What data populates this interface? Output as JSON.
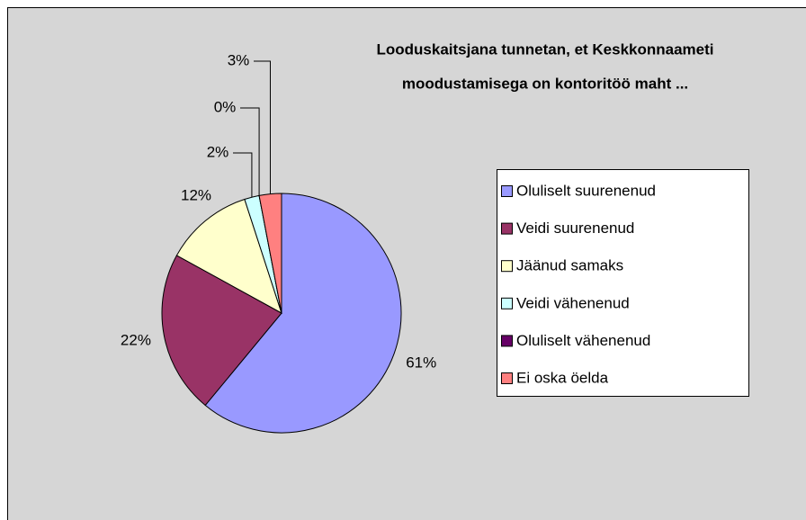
{
  "chart_data": {
    "type": "pie",
    "title": [
      "Looduskaitsjana tunnetan, et Keskkonnaameti",
      "moodustamisega  on kontoritöö maht ..."
    ],
    "categories": [
      "Oluliselt suurenenud",
      "Veidi suurenenud",
      "Jäänud samaks",
      "Veidi vähenenud",
      "Oluliselt vähenenud",
      "Ei oska öelda"
    ],
    "values": [
      61,
      22,
      12,
      2,
      0,
      3
    ],
    "value_labels": [
      "61%",
      "22%",
      "12%",
      "2%",
      "0%",
      "3%"
    ],
    "colors": [
      "#9999ff",
      "#993366",
      "#ffffcc",
      "#ccffff",
      "#660066",
      "#ff8080"
    ],
    "legend": "right"
  }
}
